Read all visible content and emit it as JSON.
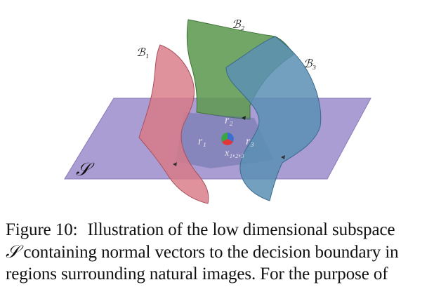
{
  "figure": {
    "subspace_label": "𝒮",
    "boundary_labels": [
      "ℬ₁",
      "ℬ₂",
      "ℬ₃"
    ],
    "region_labels": [
      "r₁",
      "r₂",
      "r₃"
    ],
    "point_label": "x₁,₂,₃",
    "colors": {
      "plane": "#9b8ccc",
      "plane_edge": "#8a7ab8",
      "b1": "#d97a86",
      "b2": "#5e9a52",
      "b3": "#5a8fb4",
      "center_red": "#e0383a",
      "center_green": "#3aa545",
      "center_blue": "#3a6fd0"
    }
  },
  "caption": {
    "line1_label": "Figure 10:",
    "line1_text": "Illustration of the low dimensional subspace",
    "line2_symbol": "𝒮",
    "line2_text": " containing normal vectors to the decision boundary in",
    "line3_text": "regions surrounding natural images.  For the purpose of"
  }
}
